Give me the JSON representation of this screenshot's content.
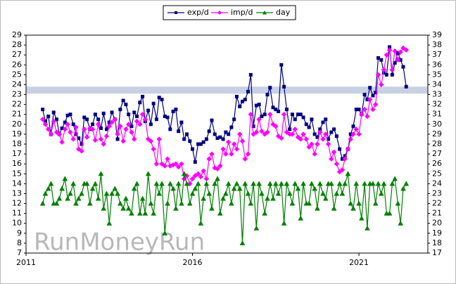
{
  "chart_data": {
    "type": "line",
    "watermark": "RunMoneyRun",
    "xlim": [
      2011,
      2023.07
    ],
    "xticks": [
      2011,
      2016,
      2021
    ],
    "ylim": [
      7,
      29
    ],
    "yticks": [
      7,
      8,
      9,
      10,
      11,
      12,
      13,
      14,
      15,
      16,
      17,
      18,
      19,
      20,
      21,
      22,
      23,
      24,
      25,
      26,
      27,
      28,
      29
    ],
    "y2lim": [
      17,
      39
    ],
    "y2ticks": [
      17,
      18,
      19,
      20,
      21,
      22,
      23,
      24,
      25,
      26,
      27,
      28,
      29,
      30,
      31,
      32,
      33,
      34,
      35,
      36,
      37,
      38,
      39
    ],
    "reference_band": [
      23.1,
      23.8
    ],
    "band_color": "#c8d0e4",
    "grid": false,
    "x": [
      2011.5,
      2011.58,
      2011.67,
      2011.75,
      2011.83,
      2011.92,
      2012,
      2012.08,
      2012.17,
      2012.25,
      2012.33,
      2012.42,
      2012.5,
      2012.58,
      2012.67,
      2012.75,
      2012.83,
      2012.92,
      2013,
      2013.08,
      2013.17,
      2013.25,
      2013.33,
      2013.42,
      2013.5,
      2013.58,
      2013.67,
      2013.75,
      2013.83,
      2013.92,
      2014,
      2014.08,
      2014.17,
      2014.25,
      2014.33,
      2014.42,
      2014.5,
      2014.58,
      2014.67,
      2014.75,
      2014.83,
      2014.92,
      2015,
      2015.08,
      2015.17,
      2015.25,
      2015.33,
      2015.42,
      2015.5,
      2015.58,
      2015.67,
      2015.75,
      2015.83,
      2015.92,
      2016,
      2016.08,
      2016.17,
      2016.25,
      2016.33,
      2016.42,
      2016.5,
      2016.58,
      2016.67,
      2016.75,
      2016.83,
      2016.92,
      2017,
      2017.08,
      2017.17,
      2017.25,
      2017.33,
      2017.42,
      2017.5,
      2017.58,
      2017.67,
      2017.75,
      2017.83,
      2017.92,
      2018,
      2018.08,
      2018.17,
      2018.25,
      2018.33,
      2018.42,
      2018.5,
      2018.58,
      2018.67,
      2018.75,
      2018.83,
      2018.92,
      2019,
      2019.08,
      2019.17,
      2019.25,
      2019.33,
      2019.42,
      2019.5,
      2019.58,
      2019.67,
      2019.75,
      2019.83,
      2019.92,
      2020,
      2020.08,
      2020.17,
      2020.25,
      2020.33,
      2020.42,
      2020.5,
      2020.58,
      2020.67,
      2020.75,
      2020.83,
      2020.92,
      2021,
      2021.08,
      2021.17,
      2021.25,
      2021.33,
      2021.42,
      2021.5,
      2021.58,
      2021.67,
      2021.75,
      2021.83,
      2021.92,
      2022,
      2022.08,
      2022.17,
      2022.25,
      2022.33,
      2022.42
    ],
    "series": [
      {
        "name": "exp/d",
        "color": "#000080",
        "marker": "square",
        "values": [
          21.5,
          20.3,
          20.8,
          19.0,
          21.2,
          20.5,
          19.0,
          19.6,
          20.2,
          20.9,
          21.0,
          20.0,
          19.0,
          18.6,
          18.0,
          20.7,
          20.5,
          19.5,
          20.0,
          21.0,
          20.5,
          19.6,
          21.1,
          19.5,
          20.2,
          21.2,
          20.5,
          18.5,
          21.5,
          22.4,
          22.0,
          21.0,
          19.8,
          21.2,
          20.8,
          22.2,
          22.8,
          20.3,
          21.4,
          20.0,
          22.1,
          20.5,
          22.7,
          22.5,
          20.8,
          20.7,
          19.5,
          21.3,
          21.5,
          19.3,
          20.2,
          18.5,
          19.0,
          18.3,
          17.5,
          16.2,
          18.0,
          18.0,
          18.2,
          18.5,
          19.3,
          20.4,
          19.0,
          18.6,
          18.7,
          18.5,
          19.2,
          19.0,
          19.7,
          20.5,
          22.8,
          21.8,
          22.3,
          22.5,
          23.3,
          25.0,
          19.8,
          21.9,
          22.0,
          20.8,
          21.0,
          23.0,
          23.7,
          21.7,
          21.5,
          21.3,
          26.0,
          23.8,
          21.5,
          19.5,
          21.0,
          20.5,
          21.0,
          21.0,
          20.7,
          20.0,
          19.7,
          20.5,
          19.0,
          18.7,
          19.5,
          20.2,
          20.5,
          18.5,
          19.2,
          19.5,
          18.8,
          17.5,
          16.5,
          16.8,
          17.5,
          19.0,
          19.8,
          21.5,
          21.5,
          21.0,
          23.0,
          22.5,
          23.7,
          22.9,
          23.2,
          26.7,
          26.5,
          25.2,
          25.0,
          27.8,
          25.0,
          26.2,
          27.2,
          26.5,
          25.8,
          23.8
        ]
      },
      {
        "name": "imp/d",
        "color": "#ff00ff",
        "marker": "diamond",
        "values": [
          20.5,
          20.0,
          19.5,
          19.0,
          20.3,
          19.2,
          19.0,
          18.2,
          19.5,
          20.0,
          19.2,
          18.5,
          19.7,
          17.5,
          17.3,
          19.5,
          18.7,
          19.6,
          19.5,
          18.4,
          20.0,
          18.5,
          18.0,
          18.8,
          19.8,
          20.2,
          20.5,
          19.0,
          19.8,
          18.3,
          19.5,
          20.0,
          19.2,
          18.5,
          20.3,
          20.0,
          21.0,
          20.5,
          18.5,
          18.3,
          17.5,
          16.0,
          18.5,
          16.0,
          15.8,
          16.5,
          15.8,
          15.9,
          16.0,
          15.7,
          16.0,
          14.5,
          14.8,
          14.0,
          14.5,
          14.8,
          15.0,
          14.7,
          15.3,
          14.5,
          16.5,
          17.0,
          15.6,
          15.5,
          15.8,
          17.5,
          17.0,
          18.2,
          17.0,
          18.0,
          17.5,
          19.0,
          18.3,
          16.5,
          17.0,
          21.0,
          19.0,
          19.2,
          20.5,
          19.3,
          19.0,
          19.2,
          21.0,
          20.0,
          19.8,
          18.8,
          18.6,
          21.0,
          19.2,
          19.0,
          19.0,
          19.5,
          18.7,
          18.5,
          19.0,
          18.5,
          17.7,
          18.0,
          17.0,
          18.0,
          19.2,
          18.5,
          19.0,
          18.0,
          16.5,
          17.2,
          16.0,
          15.2,
          15.4,
          16.5,
          17.5,
          18.5,
          19.0,
          19.5,
          19.0,
          21.0,
          21.5,
          20.8,
          22.5,
          21.5,
          22.0,
          25.0,
          24.0,
          25.5,
          27.0,
          27.5,
          25.5,
          27.4,
          26.5,
          27.3,
          27.7,
          27.5
        ]
      },
      {
        "name": "day",
        "color": "#008000",
        "marker": "triangle",
        "axis": "y2",
        "values": [
          22,
          23,
          23.5,
          24,
          22,
          22,
          22.5,
          23.5,
          24.5,
          22.5,
          23,
          24,
          22,
          22.5,
          23,
          24,
          24,
          22,
          23.5,
          24,
          22.5,
          25,
          21.5,
          23,
          20,
          23,
          23.5,
          23,
          22,
          21.5,
          22.5,
          21.5,
          21,
          23.5,
          24,
          21,
          22.5,
          21,
          25,
          22,
          21,
          24,
          23,
          24,
          19,
          22,
          24,
          23.5,
          21.5,
          24,
          22,
          25,
          24,
          22,
          23,
          23.5,
          24,
          20,
          22.5,
          24,
          23,
          21.5,
          24,
          24.5,
          21,
          22.5,
          23,
          24,
          22,
          23.5,
          24,
          23.5,
          18,
          24,
          23,
          22,
          24,
          19.5,
          24,
          23,
          21,
          22.5,
          24,
          22.5,
          24,
          23,
          24,
          20,
          24,
          23,
          22,
          24,
          23.5,
          20.5,
          24,
          22,
          22,
          24,
          23.5,
          21.5,
          24,
          23,
          22.5,
          24,
          24,
          21.5,
          23,
          24,
          23,
          24,
          25,
          22,
          21.5,
          24,
          22,
          20.5,
          24,
          19.5,
          24,
          24,
          22,
          24,
          23,
          24,
          21,
          21,
          24,
          24.5,
          22,
          20,
          23.5,
          24
        ]
      }
    ]
  }
}
